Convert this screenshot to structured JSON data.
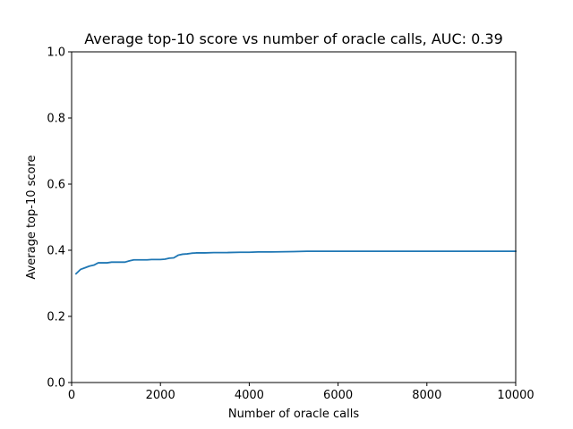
{
  "chart_data": {
    "type": "line",
    "title": "Average top-10 score vs number of oracle calls, AUC: 0.39",
    "xlabel": "Number of oracle calls",
    "ylabel": "Average top-10 score",
    "xlim": [
      0,
      10000
    ],
    "ylim": [
      0.0,
      1.0
    ],
    "xticks": [
      "0",
      "2000",
      "4000",
      "6000",
      "8000",
      "10000"
    ],
    "xtick_values": [
      0,
      2000,
      4000,
      6000,
      8000,
      10000
    ],
    "yticks": [
      "0.0",
      "0.2",
      "0.4",
      "0.6",
      "0.8",
      "1.0"
    ],
    "ytick_values": [
      0.0,
      0.2,
      0.4,
      0.6,
      0.8,
      1.0
    ],
    "grid": false,
    "line_color": "#1f77b4",
    "series": [
      {
        "x": [
          100,
          200,
          300,
          400,
          500,
          600,
          700,
          800,
          900,
          1000,
          1100,
          1200,
          1300,
          1400,
          1500,
          1600,
          1700,
          1800,
          1900,
          2000,
          2100,
          2200,
          2300,
          2400,
          2500,
          2600,
          2700,
          2800,
          2900,
          3000,
          3200,
          3500,
          3800,
          4000,
          4200,
          4500,
          5000,
          5300,
          5500,
          6000,
          7000,
          8000,
          9000,
          10000
        ],
        "y": [
          0.329,
          0.342,
          0.347,
          0.352,
          0.355,
          0.362,
          0.362,
          0.362,
          0.364,
          0.364,
          0.364,
          0.364,
          0.368,
          0.371,
          0.371,
          0.371,
          0.371,
          0.372,
          0.372,
          0.372,
          0.373,
          0.376,
          0.377,
          0.385,
          0.388,
          0.389,
          0.391,
          0.392,
          0.392,
          0.392,
          0.393,
          0.393,
          0.394,
          0.394,
          0.395,
          0.395,
          0.396,
          0.397,
          0.397,
          0.397,
          0.397,
          0.397,
          0.397,
          0.397
        ]
      }
    ]
  }
}
